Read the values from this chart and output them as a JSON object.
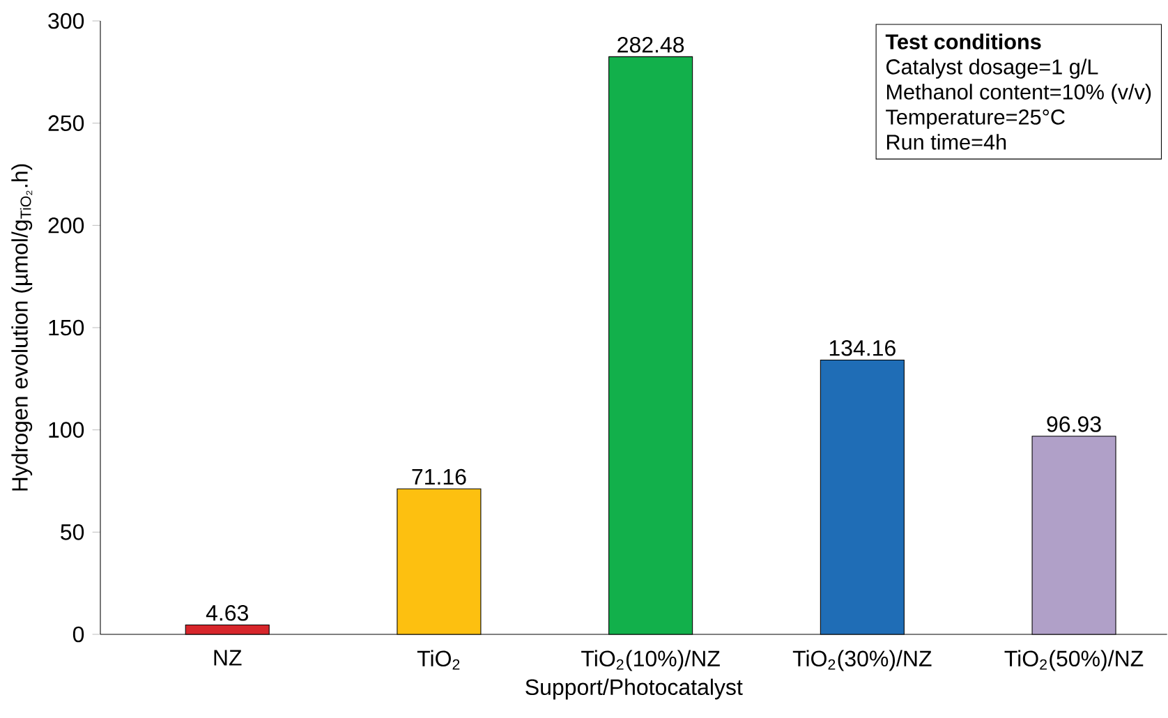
{
  "chart_data": {
    "type": "bar",
    "xlabel": "Support/Photocatalyst",
    "ylabel": "Hydrogen evolution (µmol/g$_{TiO₂}$.h)",
    "categories": [
      "NZ",
      "TiO$_{2}$",
      "TiO$_{2}$(10%)/NZ",
      "TiO$_{2}$(30%)/NZ",
      "TiO$_{2}$(50%)/NZ"
    ],
    "values": [
      4.63,
      71.16,
      282.48,
      134.16,
      96.93
    ],
    "colors": [
      "#d7262b",
      "#fdc010",
      "#12b04b",
      "#1f6db6",
      "#b0a0c8"
    ],
    "ylim": [
      0,
      300
    ],
    "yticks": [
      0,
      50,
      100,
      150,
      200,
      250,
      300
    ],
    "data_labels": true,
    "grid": false,
    "annotations": [
      "Test conditions",
      "Catalyst dosage=1 g/L",
      "Methanol content=10% (v/v)",
      "Temperature=25°C",
      "Run time=4h"
    ]
  }
}
